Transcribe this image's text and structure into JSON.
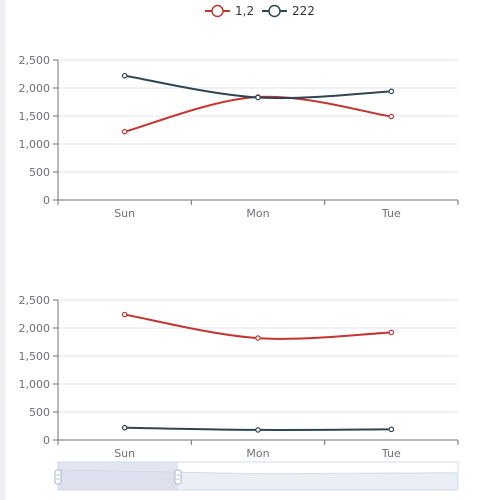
{
  "chart_data": [
    {
      "type": "line",
      "smooth": true,
      "categories": [
        "Sun",
        "Mon",
        "Tue"
      ],
      "ylim": [
        0,
        2500
      ],
      "yticks": [
        "0",
        "500",
        "1,000",
        "1,500",
        "2,000",
        "2,500"
      ],
      "grid": true,
      "legend_position": "top-center",
      "series": [
        {
          "name": "1,2",
          "color": "#c23531",
          "values": [
            1220,
            1840,
            1490
          ]
        },
        {
          "name": "222",
          "color": "#2f4554",
          "values": [
            2220,
            1830,
            1940
          ]
        }
      ]
    },
    {
      "type": "line",
      "smooth": true,
      "categories": [
        "Sun",
        "Mon",
        "Tue"
      ],
      "ylim": [
        0,
        2500
      ],
      "yticks": [
        "0",
        "500",
        "1,000",
        "1,500",
        "2,000",
        "2,500"
      ],
      "grid": true,
      "series": [
        {
          "name": "1,2",
          "color": "#c23531",
          "values": [
            2240,
            1820,
            1920
          ]
        },
        {
          "name": "222",
          "color": "#2f4554",
          "values": [
            220,
            180,
            190
          ]
        }
      ],
      "data_zoom": {
        "start_fraction": 0.0,
        "end_fraction": 0.3,
        "handle_color": "#a7b7cc",
        "selection_color": "#d6dcea"
      }
    }
  ]
}
